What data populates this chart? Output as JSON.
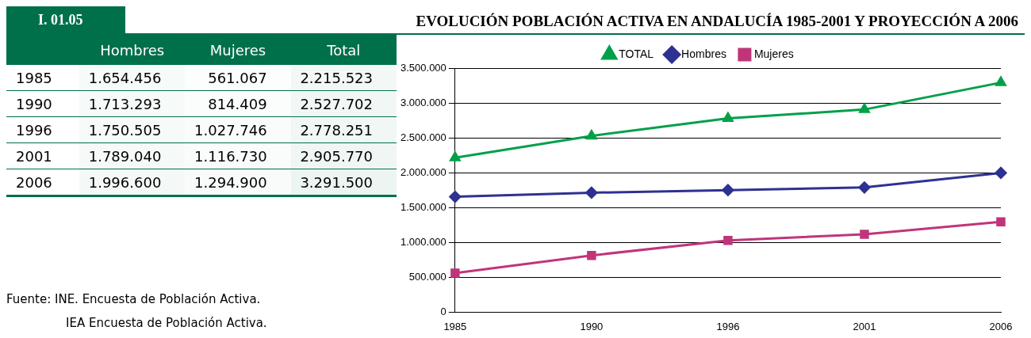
{
  "chart_data": [
    {
      "type": "heatmap",
      "title": "I. 01.05",
      "categories": [
        "Hombres",
        "Mujeres",
        "Total"
      ],
      "y_categories": [
        "1985",
        "1990",
        "1996",
        "2001",
        "2006"
      ],
      "cells": [
        [
          1654456,
          561067,
          2215523
        ],
        [
          1713293,
          814409,
          2527702
        ],
        [
          1750505,
          1027746,
          2778251
        ],
        [
          1789040,
          1116730,
          2905770
        ],
        [
          1996600,
          1294900,
          3291500
        ]
      ],
      "cell_labels": [
        [
          "1.654.456",
          "561.067",
          "2.215.523"
        ],
        [
          "1.713.293",
          "814.409",
          "2.527.702"
        ],
        [
          "1.750.505",
          "1.027.746",
          "2.778.251"
        ],
        [
          "1.789.040",
          "1.116.730",
          "2.905.770"
        ],
        [
          "1.996.600",
          "1.294.900",
          "3.291.500"
        ]
      ],
      "annotations": [
        "Fuente: INE. Encuesta de Población Activa.",
        "IEA Encuesta de Población Activa."
      ]
    },
    {
      "type": "line",
      "title": "EVOLUCIÓN POBLACIÓN ACTIVA EN ANDALUCÍA 1985-2001 Y PROYECCIÓN A 2006",
      "categories": [
        "1985",
        "1990",
        "1996",
        "2001",
        "2006"
      ],
      "series": [
        {
          "name": "TOTAL",
          "color": "#00a04a",
          "marker": "triangle",
          "values": [
            2215523,
            2527702,
            2778251,
            2905770,
            3291500
          ]
        },
        {
          "name": "Hombres",
          "color": "#2e3192",
          "marker": "diamond",
          "values": [
            1654456,
            1713293,
            1750505,
            1789040,
            1996600
          ]
        },
        {
          "name": "Mujeres",
          "color": "#c0357a",
          "marker": "square",
          "values": [
            561067,
            814409,
            1027746,
            1116730,
            1294900
          ]
        }
      ],
      "ylim": [
        0,
        3500000
      ],
      "yticks": [
        {
          "value": 0,
          "label": "0"
        },
        {
          "value": 500000,
          "label": "500.000"
        },
        {
          "value": 1000000,
          "label": "1.000.000"
        },
        {
          "value": 1500000,
          "label": "1.500.000"
        },
        {
          "value": 2000000,
          "label": "2.000.000"
        },
        {
          "value": 2500000,
          "label": "2.500.000"
        },
        {
          "value": 3000000,
          "label": "3.000.000"
        },
        {
          "value": 3500000,
          "label": "3.500.000"
        }
      ],
      "grid": "y",
      "legend": "top"
    }
  ]
}
